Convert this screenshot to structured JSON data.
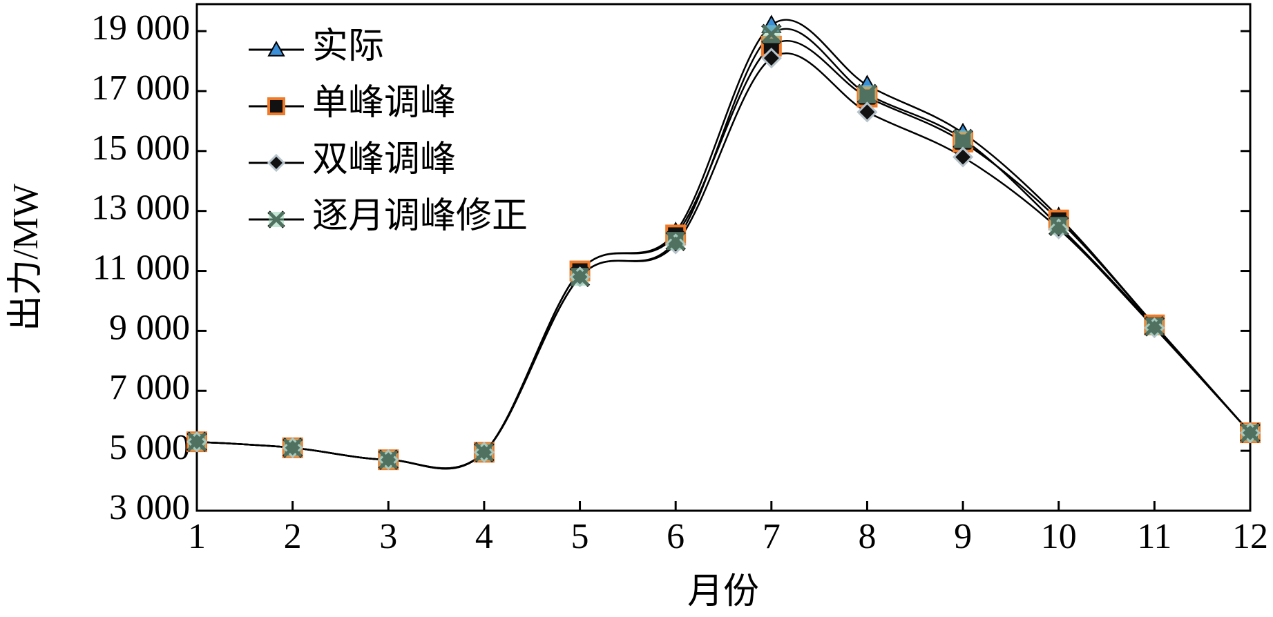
{
  "chart_data": {
    "type": "line",
    "xlabel": "月份",
    "ylabel": "出力/MW",
    "x": [
      1,
      2,
      3,
      4,
      5,
      6,
      7,
      8,
      9,
      10,
      11,
      12
    ],
    "xlim": [
      1,
      12
    ],
    "xticks": [
      1,
      2,
      3,
      4,
      5,
      6,
      7,
      8,
      9,
      10,
      11,
      12
    ],
    "ylim": [
      3000,
      19900
    ],
    "yticks": [
      {
        "value": 3000,
        "label": "3 000"
      },
      {
        "value": 5000,
        "label": "5 000"
      },
      {
        "value": 7000,
        "label": "7 000"
      },
      {
        "value": 9000,
        "label": "9 000"
      },
      {
        "value": 11000,
        "label": "11 000"
      },
      {
        "value": 13000,
        "label": "13 000"
      },
      {
        "value": 15000,
        "label": "15 000"
      },
      {
        "value": 17000,
        "label": "17 000"
      },
      {
        "value": 19000,
        "label": "19 000"
      }
    ],
    "grid": false,
    "smooth": true,
    "line_color": "#000000",
    "legend": "upper left",
    "series": [
      {
        "name": "实际",
        "color": "#3a8fd8",
        "marker": "triangle",
        "values": [
          5300,
          5100,
          4700,
          4950,
          11000,
          12300,
          19200,
          17200,
          15600,
          12800,
          9200,
          5600
        ]
      },
      {
        "name": "单峰调峰",
        "color": "#f07a28",
        "marker": "square",
        "values": [
          5300,
          5100,
          4700,
          4950,
          11000,
          12200,
          18500,
          16800,
          15300,
          12700,
          9200,
          5600
        ]
      },
      {
        "name": "双峰调峰",
        "color": "#b8c4cc",
        "marker": "diamond",
        "values": [
          5300,
          5100,
          4700,
          4950,
          10800,
          11900,
          18100,
          16300,
          14800,
          12400,
          9100,
          5600
        ]
      },
      {
        "name": "逐月调峰修正",
        "color": "#8fd0b0",
        "marker": "x",
        "values": [
          5300,
          5100,
          4700,
          4950,
          10800,
          12000,
          18900,
          16900,
          15400,
          12500,
          9150,
          5600
        ]
      }
    ]
  }
}
